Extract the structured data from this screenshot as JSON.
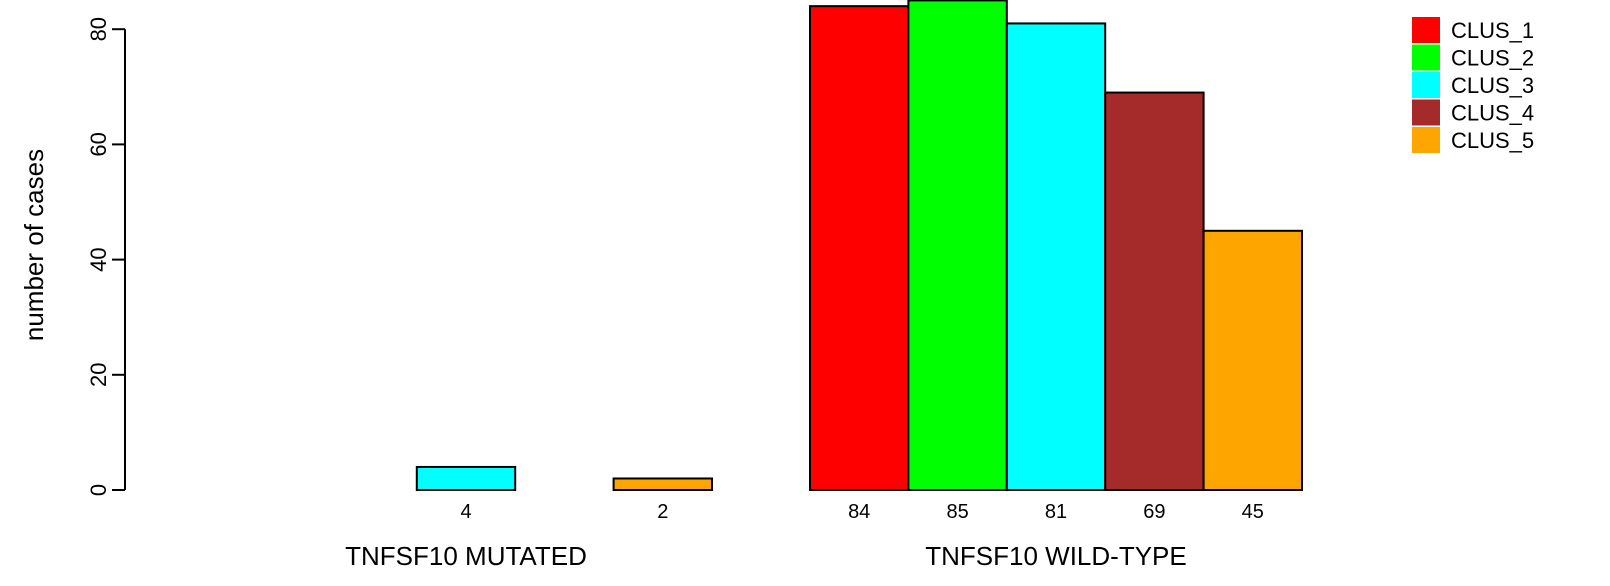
{
  "chart_data": {
    "type": "bar",
    "ylabel": "number of cases",
    "ylim": [
      0,
      85
    ],
    "yticks": [
      0,
      20,
      40,
      60,
      80
    ],
    "groups": [
      {
        "label": "TNFSF10 MUTATED",
        "values": [
          0,
          0,
          4,
          0,
          2
        ],
        "count_labels": [
          "",
          "",
          "4",
          "",
          "2"
        ]
      },
      {
        "label": "TNFSF10 WILD-TYPE",
        "values": [
          84,
          85,
          81,
          69,
          45
        ],
        "count_labels": [
          "84",
          "85",
          "81",
          "69",
          "45"
        ]
      }
    ],
    "series": [
      {
        "name": "CLUS_1",
        "color": "#ff0000"
      },
      {
        "name": "CLUS_2",
        "color": "#00ff00"
      },
      {
        "name": "CLUS_3",
        "color": "#00ffff"
      },
      {
        "name": "CLUS_4",
        "color": "#a52a2a"
      },
      {
        "name": "CLUS_5",
        "color": "#ffa500"
      }
    ],
    "legend_position": "top-right",
    "grid": false
  }
}
